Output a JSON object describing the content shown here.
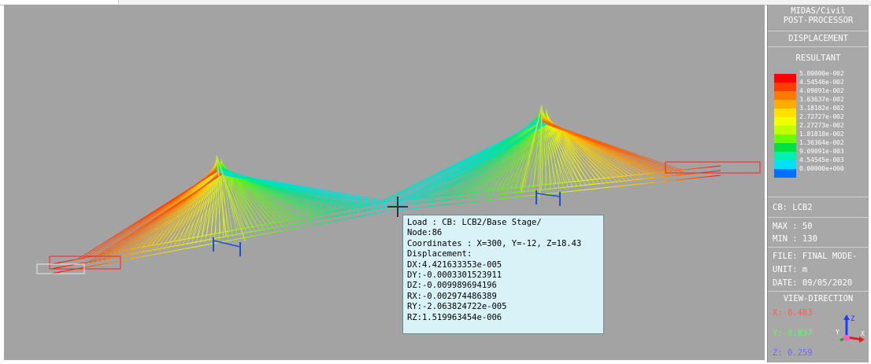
{
  "panel": {
    "program": "MIDAS/Civil",
    "mode": "POST-PROCESSOR",
    "result_type": "DISPLACEMENT",
    "component": "RESULTANT",
    "legend": [
      {
        "label": "5.00000e-002",
        "color": "#ff0000"
      },
      {
        "label": "4.54546e-002",
        "color": "#ff3b00"
      },
      {
        "label": "4.09091e-002",
        "color": "#ff7a00"
      },
      {
        "label": "3.63637e-002",
        "color": "#ffae00"
      },
      {
        "label": "3.18182e-002",
        "color": "#ffe000"
      },
      {
        "label": "2.72727e-002",
        "color": "#f0ff00"
      },
      {
        "label": "2.27273e-002",
        "color": "#bfff00"
      },
      {
        "label": "1.81818e-002",
        "color": "#66ff00"
      },
      {
        "label": "1.36364e-002",
        "color": "#00e040"
      },
      {
        "label": "9.09091e-003",
        "color": "#00f0b0"
      },
      {
        "label": "4.54545e-003",
        "color": "#00e0ff"
      },
      {
        "label": "0.00000e+000",
        "color": "#0070ff"
      }
    ],
    "cb": "CB: LCB2",
    "max": "MAX : 50",
    "min": "MIN : 130",
    "file": "FILE: FINAL MODE-",
    "unit": "UNIT: m",
    "date": "DATE: 09/05/2020",
    "view_direction": "VIEW-DIRECTION",
    "vx": "X:-0.483",
    "vy": "Y:-0.837",
    "vz": "Z: 0.259",
    "vx_color": "#ff5a5a",
    "vy_color": "#5aff5a",
    "vz_color": "#6a6aff"
  },
  "tooltip": {
    "lines": [
      "Load : CB: LCB2/Base Stage/",
      "Node:86",
      "Coordinates : X=300, Y=-12, Z=18.43",
      "Displacement:",
      "DX:4.421633353e-005",
      "DY:-0.0003301523911",
      "DZ:-0.009989694196",
      "RX:-0.002974486389",
      "RY:-2.063824722e-005",
      "RZ:1.519963454e-006"
    ]
  },
  "axis_icon": {
    "x": "X",
    "y": "Y",
    "z": "Z"
  },
  "colors": {
    "viewport_bg": "#a3a3a3",
    "panel_bg": "#a8a8a8",
    "tooltip_bg": "#d8f2f7"
  }
}
